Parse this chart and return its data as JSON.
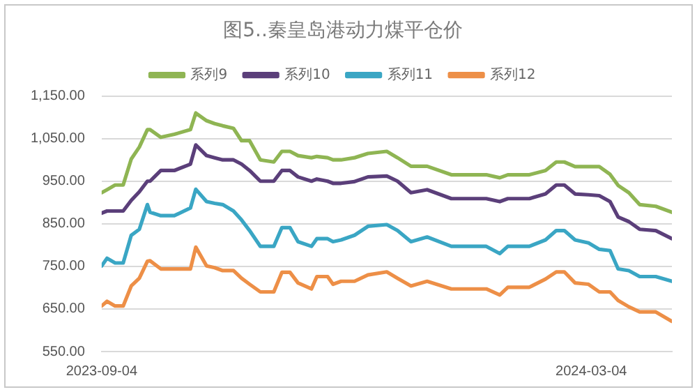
{
  "chart_data": {
    "type": "line",
    "title": "图5..秦皇岛港动力煤平仓价",
    "x": [
      "2023-09-04",
      "2023-09-06",
      "2023-09-09",
      "2023-09-12",
      "2023-09-15",
      "2023-09-18",
      "2023-09-21",
      "2023-09-22",
      "2023-09-26",
      "2023-10-01",
      "2023-10-07",
      "2023-10-09",
      "2023-10-13",
      "2023-10-16",
      "2023-10-19",
      "2023-10-23",
      "2023-10-26",
      "2023-10-29",
      "2023-11-02",
      "2023-11-07",
      "2023-11-10",
      "2023-11-13",
      "2023-11-16",
      "2023-11-21",
      "2023-11-23",
      "2023-11-27",
      "2023-11-29",
      "2023-12-02",
      "2023-12-07",
      "2023-12-12",
      "2023-12-19",
      "2023-12-23",
      "2023-12-28",
      "2024-01-03",
      "2024-01-12",
      "2024-01-25",
      "2024-01-30",
      "2024-02-02",
      "2024-02-10",
      "2024-02-16",
      "2024-02-20",
      "2024-02-23",
      "2024-02-27",
      "2024-03-03",
      "2024-03-07",
      "2024-03-11",
      "2024-03-14",
      "2024-03-18",
      "2024-03-22",
      "2024-03-28",
      "2024-04-03"
    ],
    "series": [
      {
        "name": "系列9",
        "color": "#8fb553",
        "values": [
          923,
          930,
          941,
          941,
          1002,
          1030,
          1071,
          1071,
          1053,
          1060,
          1071,
          1110,
          1092,
          1085,
          1080,
          1074,
          1045,
          1045,
          1000,
          995,
          1020,
          1020,
          1010,
          1005,
          1008,
          1005,
          1000,
          1000,
          1005,
          1015,
          1020,
          1005,
          985,
          985,
          965,
          965,
          958,
          965,
          965,
          975,
          995,
          995,
          984,
          984,
          984,
          966,
          940,
          923,
          895,
          891,
          877
        ]
      },
      {
        "name": "系列10",
        "color": "#5b3f7a",
        "values": [
          875,
          880,
          880,
          880,
          905,
          925,
          950,
          950,
          975,
          975,
          990,
          1035,
          1010,
          1005,
          1000,
          1000,
          990,
          975,
          950,
          950,
          975,
          975,
          960,
          950,
          955,
          950,
          945,
          945,
          949,
          960,
          962,
          950,
          923,
          930,
          909,
          909,
          902,
          909,
          909,
          920,
          941,
          941,
          920,
          918,
          916,
          902,
          866,
          855,
          837,
          834,
          815
        ]
      },
      {
        "name": "系列11",
        "color": "#3aa6c4",
        "values": [
          751,
          769,
          758,
          758,
          823,
          837,
          895,
          877,
          869,
          869,
          887,
          931,
          902,
          898,
          895,
          880,
          859,
          834,
          797,
          797,
          841,
          841,
          808,
          797,
          815,
          815,
          808,
          812,
          823,
          844,
          848,
          834,
          808,
          819,
          797,
          797,
          780,
          797,
          797,
          812,
          834,
          834,
          812,
          805,
          790,
          787,
          744,
          740,
          726,
          726,
          715
        ]
      },
      {
        "name": "系列12",
        "color": "#ed8f47",
        "values": [
          657,
          668,
          657,
          657,
          704,
          722,
          762,
          763,
          744,
          744,
          744,
          795,
          751,
          747,
          740,
          740,
          722,
          708,
          690,
          690,
          736,
          736,
          711,
          697,
          726,
          726,
          708,
          715,
          715,
          730,
          737,
          722,
          704,
          715,
          697,
          697,
          683,
          701,
          701,
          720,
          737,
          737,
          711,
          708,
          690,
          690,
          670,
          655,
          643,
          643,
          621
        ]
      }
    ],
    "xlim": [
      "2023-09-04",
      "2024-04-03"
    ],
    "xticks": [
      "2023-09-04",
      "2024-03-04"
    ],
    "ylim": [
      550,
      1150
    ],
    "yticks": [
      {
        "value": 550,
        "label": "550.00"
      },
      {
        "value": 650,
        "label": "650.00"
      },
      {
        "value": 750,
        "label": "750.00"
      },
      {
        "value": 850,
        "label": "850.00"
      },
      {
        "value": 950,
        "label": "950.00"
      },
      {
        "value": 1050,
        "label": "1,050.00"
      },
      {
        "value": 1150,
        "label": "1,150.00"
      }
    ],
    "grid": "y",
    "legend": "top",
    "marker": "none",
    "line_style": "solid"
  }
}
